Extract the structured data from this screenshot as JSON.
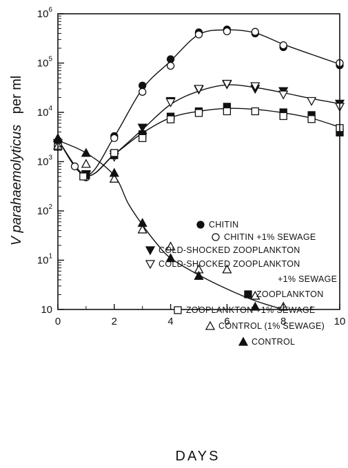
{
  "chart_data": {
    "type": "scatter",
    "title": "",
    "xlabel": "DAYS",
    "ylabel": {
      "italic": "V parahaemolyticus",
      "plain": "per ml"
    },
    "xlim": [
      0,
      10
    ],
    "ylim": [
      1,
      1000000
    ],
    "yscale": "log",
    "grid": false,
    "legend_position": "right",
    "x_ticks": [
      0,
      2,
      4,
      6,
      8,
      10
    ],
    "x_tick_labels": [
      "0",
      "2",
      "4",
      "6",
      "8",
      "10"
    ],
    "y_tick_labels": [
      {
        "value": 1000000,
        "base": "10",
        "exp": "6"
      },
      {
        "value": 100000,
        "base": "10",
        "exp": "5"
      },
      {
        "value": 10000,
        "base": "10",
        "exp": "4"
      },
      {
        "value": 1000,
        "base": "10",
        "exp": "3"
      },
      {
        "value": 100,
        "base": "10",
        "exp": "2"
      },
      {
        "value": 10,
        "base": "10",
        "exp": "1"
      },
      {
        "value": 1,
        "base": "10",
        "exp": ""
      }
    ],
    "series": [
      {
        "name": "CHITIN",
        "marker": "circle-filled",
        "points": [
          [
            0,
            2500
          ],
          [
            1,
            550
          ],
          [
            2,
            3300
          ],
          [
            3,
            35000
          ],
          [
            4,
            120000
          ],
          [
            5,
            420000
          ],
          [
            6,
            480000
          ],
          [
            7,
            400000
          ],
          [
            8,
            210000
          ],
          [
            10,
            90000
          ]
        ]
      },
      {
        "name": "CHITIN +1% SEWAGE",
        "marker": "circle-open",
        "points": [
          [
            0,
            2100
          ],
          [
            0.6,
            800
          ],
          [
            1,
            480
          ],
          [
            2,
            3000
          ],
          [
            3,
            26000
          ],
          [
            4,
            88000
          ],
          [
            5,
            380000
          ],
          [
            6,
            440000
          ],
          [
            7,
            430000
          ],
          [
            8,
            230000
          ],
          [
            10,
            100000
          ]
        ]
      },
      {
        "name": "COLD-SHOCKED ZOOPLANKTON",
        "marker": "triangle-down-filled",
        "points": [
          [
            0,
            2400
          ],
          [
            1,
            560
          ],
          [
            2,
            1400
          ],
          [
            3,
            4900
          ],
          [
            4,
            17000
          ],
          [
            5,
            29000
          ],
          [
            6,
            37000
          ],
          [
            7,
            30000
          ],
          [
            8,
            27000
          ],
          [
            10,
            15000
          ]
        ]
      },
      {
        "name": "COLD-SHOCKED ZOOPLANKTON +1% SEWAGE",
        "marker": "triangle-down-open",
        "points": [
          [
            0,
            2200
          ],
          [
            1,
            540
          ],
          [
            2,
            1250
          ],
          [
            3,
            3200
          ],
          [
            4,
            16000
          ],
          [
            5,
            30000
          ],
          [
            6,
            38000
          ],
          [
            7,
            34000
          ],
          [
            8,
            23000
          ],
          [
            9,
            17000
          ],
          [
            10,
            13000
          ]
        ]
      },
      {
        "name": "ZOOPLANKTON",
        "marker": "square-filled",
        "points": [
          [
            0,
            2300
          ],
          [
            1,
            530
          ],
          [
            2,
            1350
          ],
          [
            3,
            3600
          ],
          [
            4,
            8200
          ],
          [
            5,
            10500
          ],
          [
            6,
            13000
          ],
          [
            8,
            10000
          ],
          [
            9,
            8800
          ],
          [
            10,
            3900
          ]
        ]
      },
      {
        "name": "ZOOPLANKTON +1% SEWAGE",
        "marker": "square-open",
        "points": [
          [
            0,
            2000
          ],
          [
            0.9,
            500
          ],
          [
            2,
            1500
          ],
          [
            3,
            3000
          ],
          [
            4,
            7200
          ],
          [
            5,
            9700
          ],
          [
            6,
            10500
          ],
          [
            7,
            10500
          ],
          [
            8,
            8400
          ],
          [
            9,
            7300
          ],
          [
            10,
            4800
          ]
        ]
      },
      {
        "name": "CONTROL (1% SEWAGE)",
        "marker": "triangle-up-open",
        "points": [
          [
            0,
            2100
          ],
          [
            1,
            900
          ],
          [
            2,
            450
          ],
          [
            3,
            42
          ],
          [
            4,
            19
          ],
          [
            5,
            6.5
          ],
          [
            6,
            6.5
          ],
          [
            7,
            1.9
          ],
          [
            8,
            1
          ]
        ]
      },
      {
        "name": "CONTROL",
        "marker": "triangle-up-filled",
        "points": [
          [
            0,
            3000
          ],
          [
            1,
            1500
          ],
          [
            2,
            590
          ],
          [
            3,
            57
          ],
          [
            4,
            11
          ],
          [
            5,
            4.8
          ],
          [
            7,
            1
          ]
        ]
      }
    ],
    "curves": [
      {
        "name": "chitin-curve",
        "points": [
          [
            0,
            2800
          ],
          [
            1,
            520
          ],
          [
            2,
            3200
          ],
          [
            3,
            30000
          ],
          [
            4,
            110000
          ],
          [
            5,
            380000
          ],
          [
            6,
            470000
          ],
          [
            7,
            410000
          ],
          [
            8,
            240000
          ],
          [
            9,
            150000
          ],
          [
            10,
            95000
          ]
        ]
      },
      {
        "name": "cold-shocked-curve",
        "points": [
          [
            0,
            2800
          ],
          [
            1,
            520
          ],
          [
            2,
            1400
          ],
          [
            3,
            4500
          ],
          [
            4,
            14500
          ],
          [
            5,
            27000
          ],
          [
            6,
            36000
          ],
          [
            7,
            32000
          ],
          [
            8,
            25000
          ],
          [
            9,
            19000
          ],
          [
            10,
            15000
          ]
        ]
      },
      {
        "name": "zooplankton-curve",
        "points": [
          [
            0,
            2800
          ],
          [
            1,
            520
          ],
          [
            2,
            1400
          ],
          [
            3,
            3800
          ],
          [
            4,
            7800
          ],
          [
            5,
            10500
          ],
          [
            6,
            12000
          ],
          [
            7,
            11500
          ],
          [
            8,
            9800
          ],
          [
            9,
            7600
          ],
          [
            10,
            5000
          ]
        ]
      },
      {
        "name": "control-curve",
        "points": [
          [
            0,
            2700
          ],
          [
            1,
            1500
          ],
          [
            2,
            520
          ],
          [
            2.5,
            140
          ],
          [
            3,
            52
          ],
          [
            3.5,
            22
          ],
          [
            4,
            11
          ],
          [
            5,
            5
          ],
          [
            6,
            2.6
          ],
          [
            7,
            1.5
          ],
          [
            8,
            0.95
          ]
        ]
      }
    ]
  }
}
